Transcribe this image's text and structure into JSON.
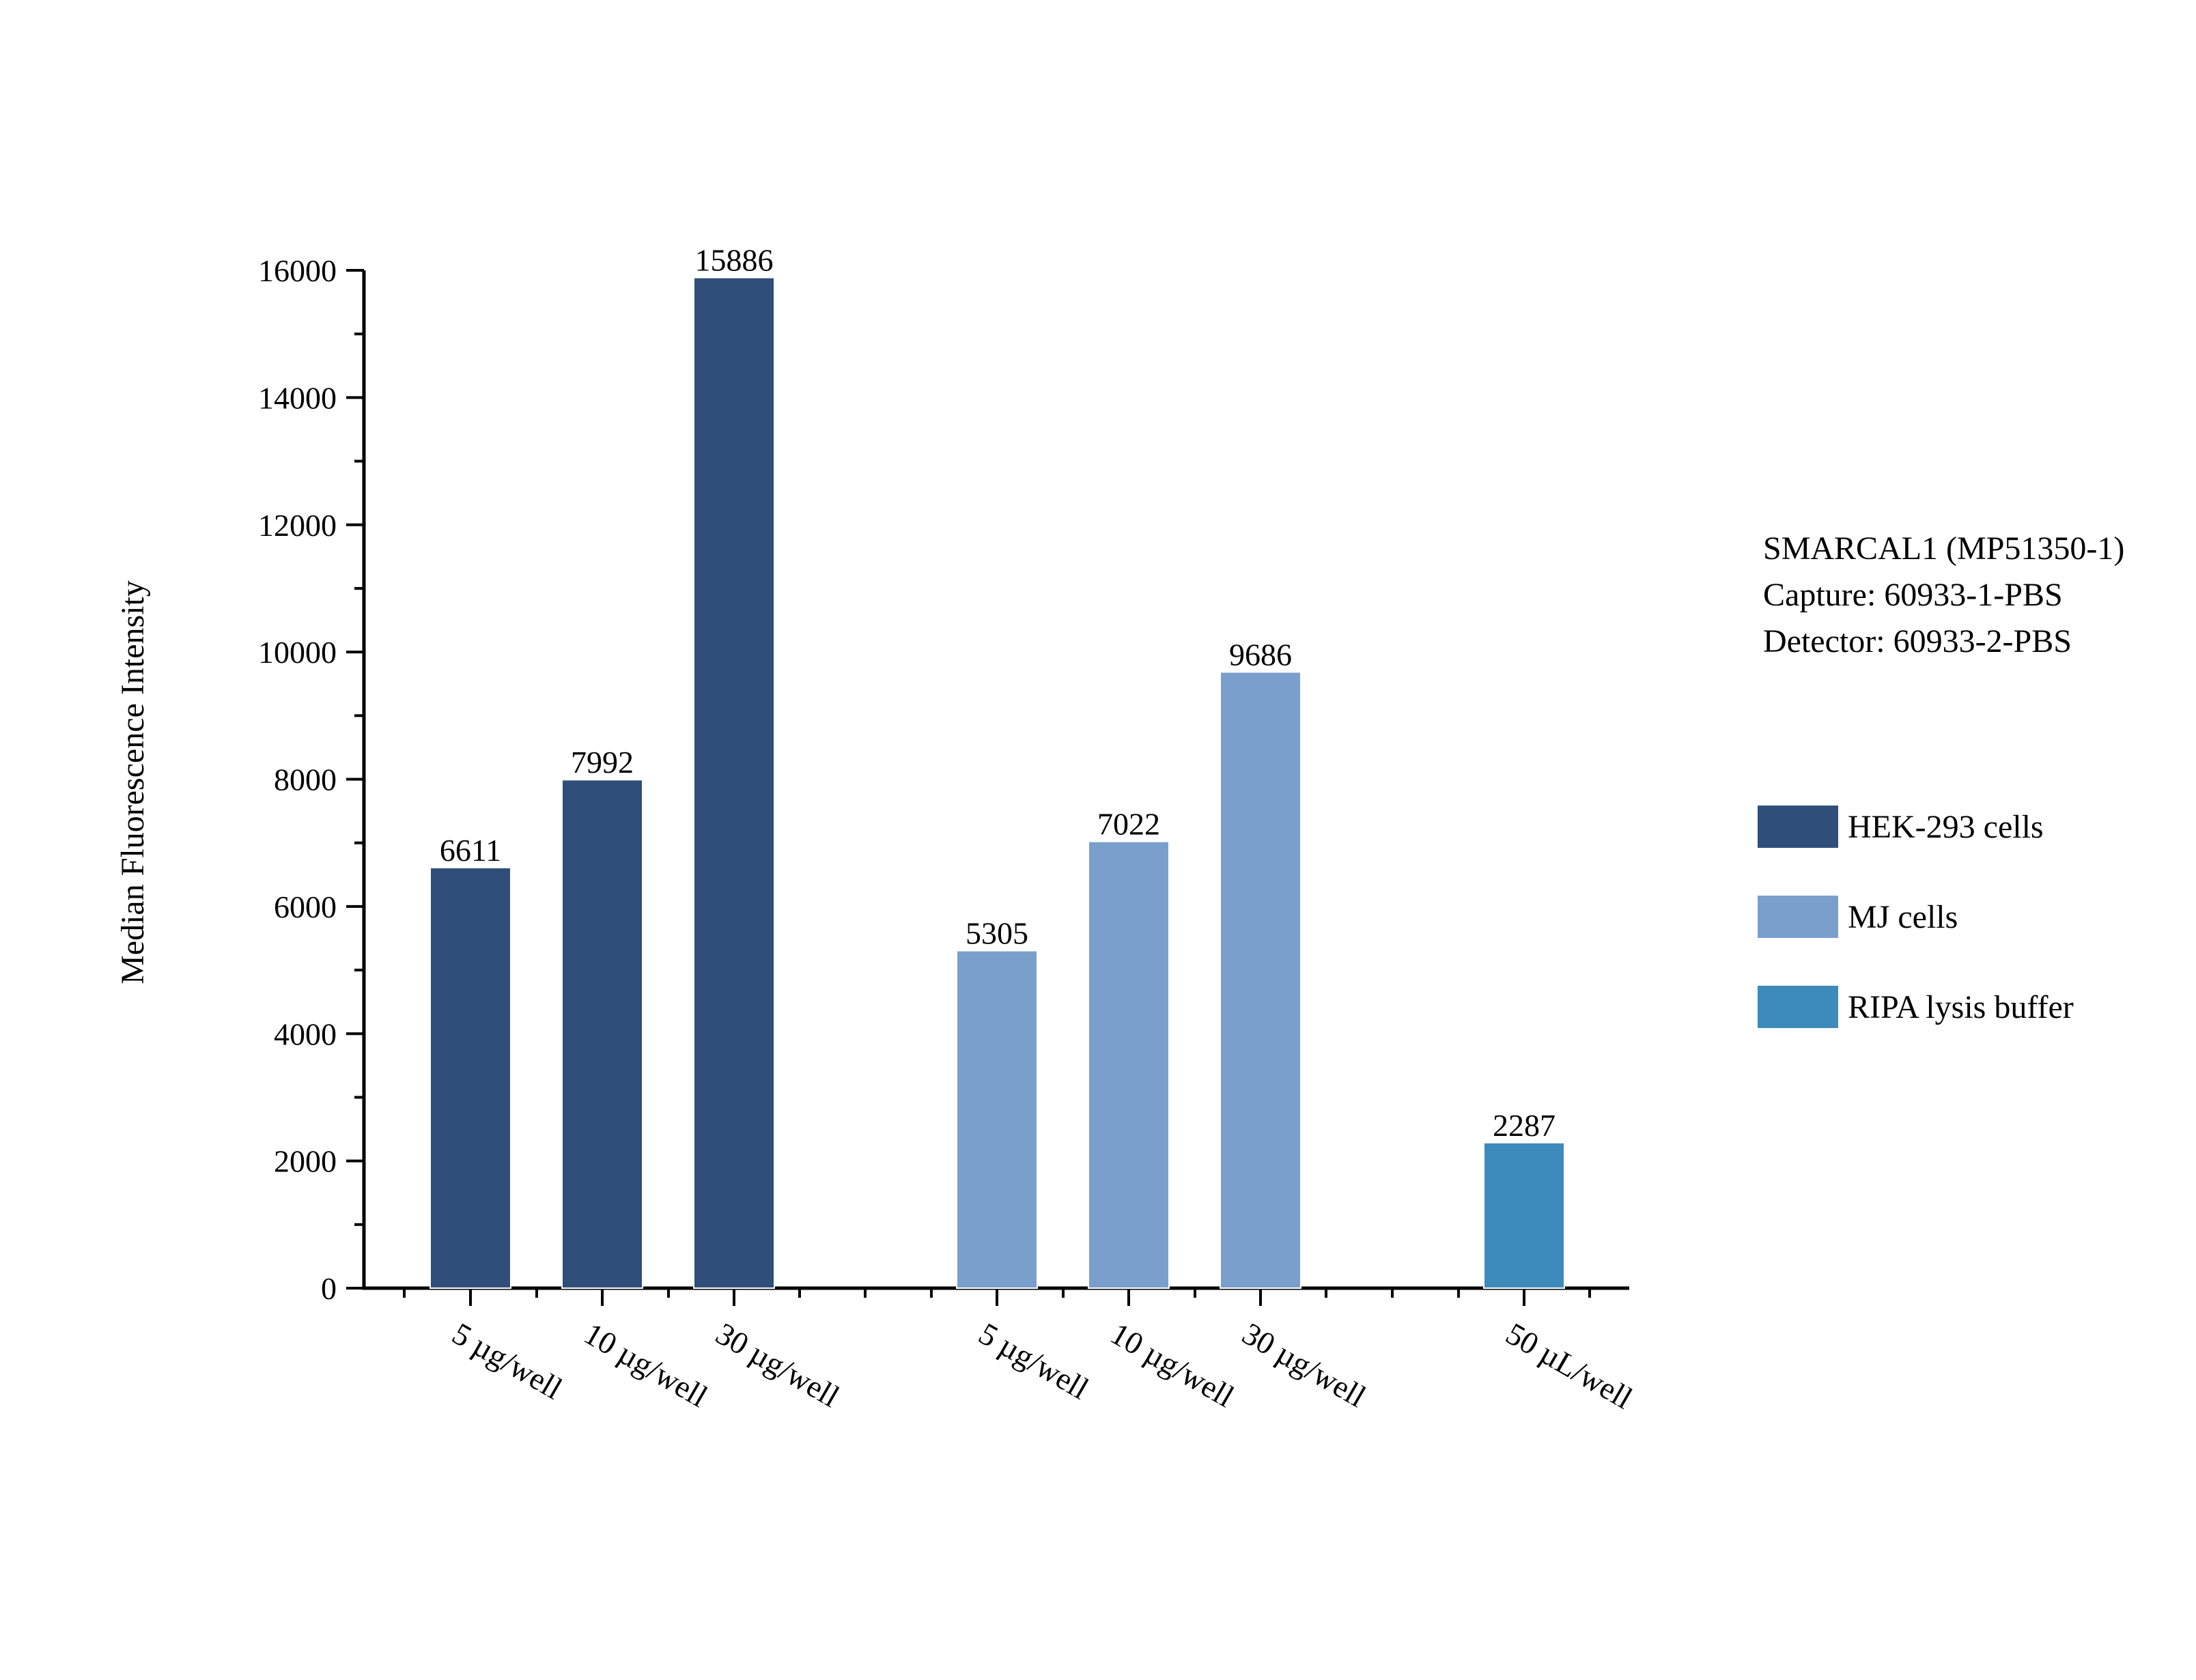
{
  "chart_data": {
    "type": "bar",
    "ylabel": "Median Fluorescence Intensity",
    "xlabel": "",
    "ylim": [
      0,
      16000
    ],
    "yticks": [
      0,
      2000,
      4000,
      6000,
      8000,
      10000,
      12000,
      14000,
      16000
    ],
    "grid": false,
    "legend_position": "right",
    "series": [
      {
        "name": "HEK-293 cells",
        "color": "#2f4f7a",
        "categories": [
          "5 µg/well",
          "10 µg/well",
          "30 µg/well"
        ],
        "values": [
          6611,
          7992,
          15886
        ]
      },
      {
        "name": "MJ cells",
        "color": "#7b9fcc",
        "categories": [
          "5 µg/well",
          "10 µg/well",
          "30 µg/well"
        ],
        "values": [
          5305,
          7022,
          9686
        ]
      },
      {
        "name": "RIPA lysis buffer",
        "color": "#3d8bba",
        "categories": [
          "50 µL/well"
        ],
        "values": [
          2287
        ]
      }
    ],
    "annotation": [
      "SMARCAL1 (MP51350-1)",
      "Capture: 60933-1-PBS",
      "Detector: 60933-2-PBS"
    ]
  }
}
